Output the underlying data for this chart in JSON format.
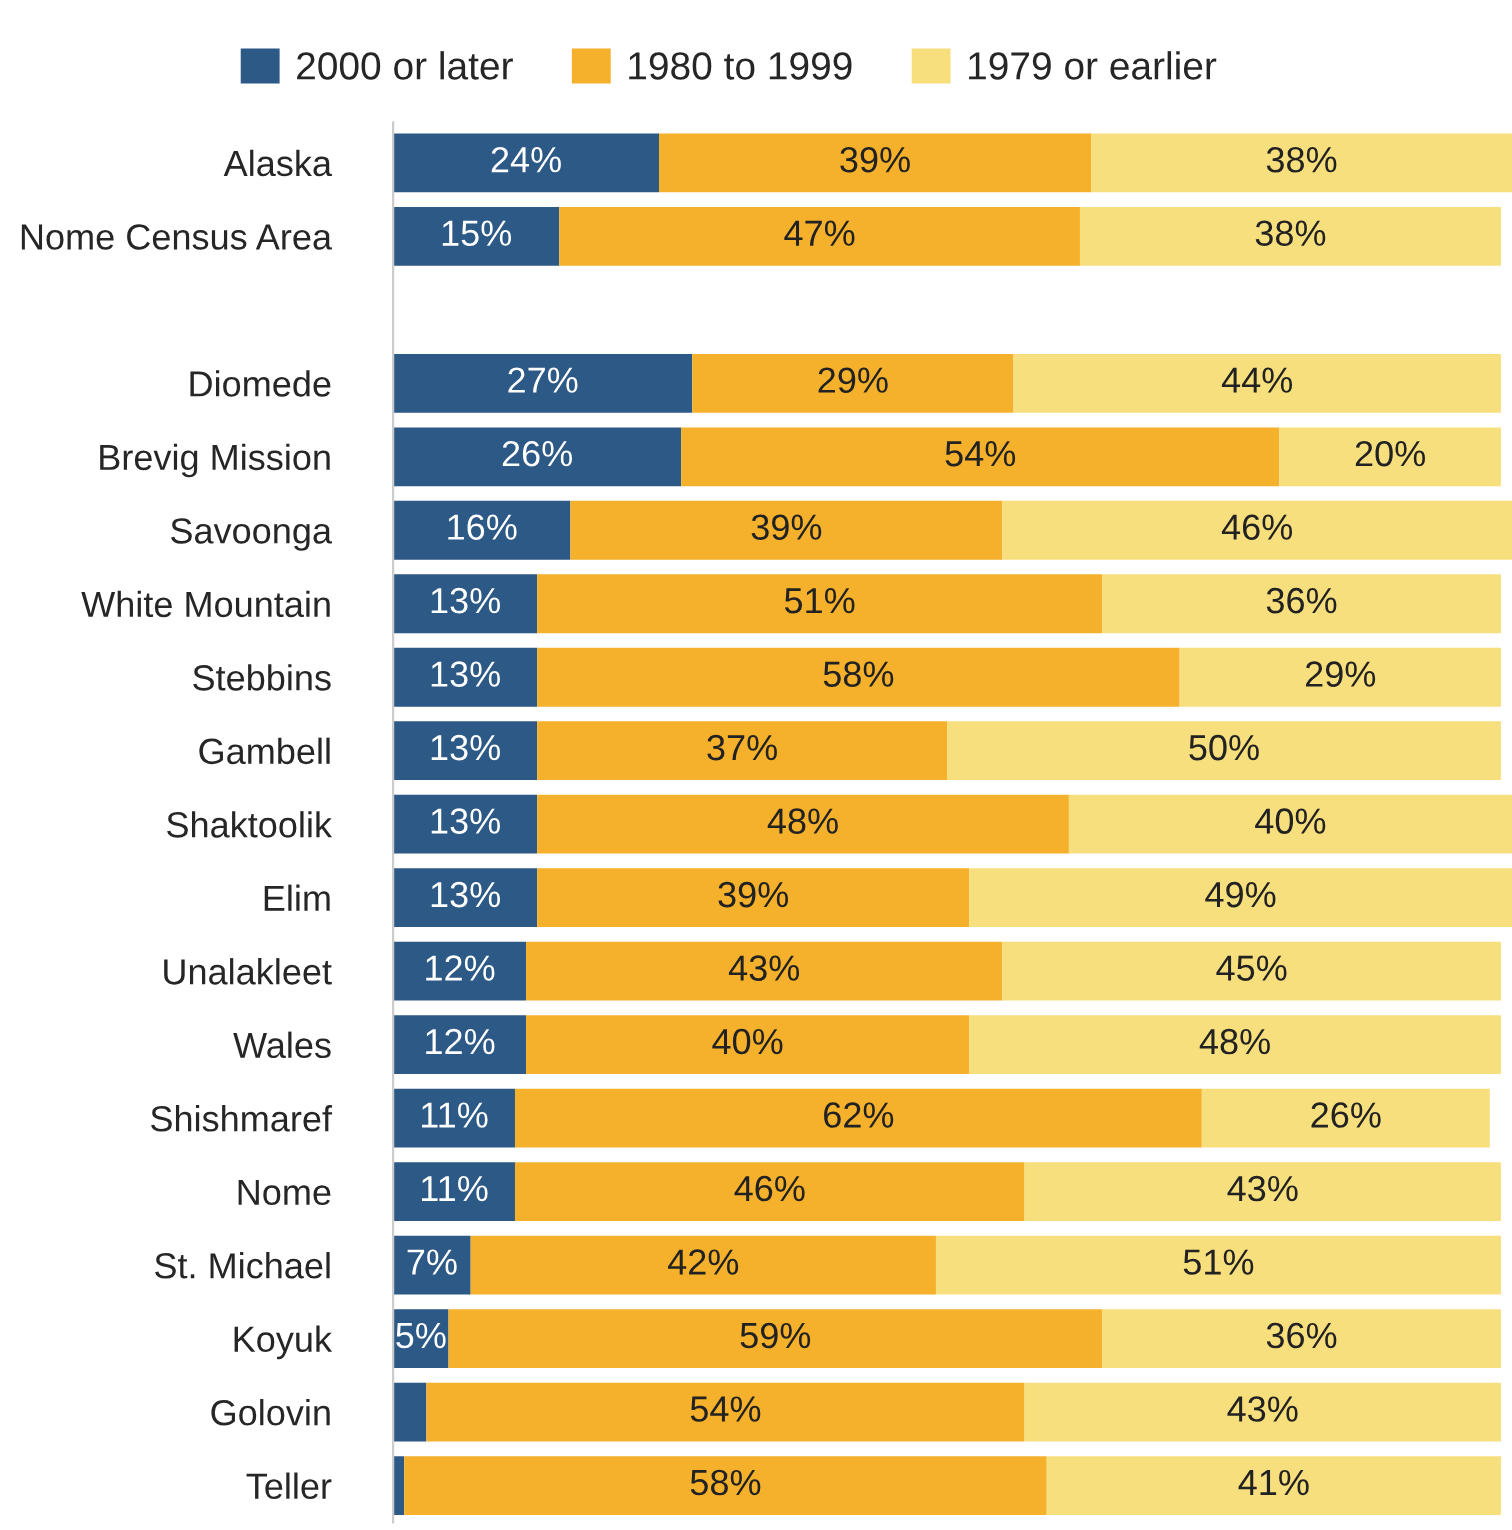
{
  "chart_data": {
    "type": "bar",
    "orientation": "horizontal",
    "stacked": true,
    "legend": "top",
    "categories": [
      "Alaska",
      "Nome Census Area",
      null,
      "Diomede",
      "Brevig Mission",
      "Savoonga",
      "White Mountain",
      "Stebbins",
      "Gambell",
      "Shaktoolik",
      "Elim",
      "Unalakleet",
      "Wales",
      "Shishmaref",
      "Nome",
      "St. Michael",
      "Koyuk",
      "Golovin",
      "Teller"
    ],
    "series": [
      {
        "name": "2000 or later",
        "color": "#2d5986",
        "values": [
          24,
          15,
          null,
          27,
          26,
          16,
          13,
          13,
          13,
          13,
          13,
          12,
          12,
          11,
          11,
          7,
          5,
          3,
          1
        ],
        "value_labels": [
          "24%",
          "15%",
          null,
          "27%",
          "26%",
          "16%",
          "13%",
          "13%",
          "13%",
          "13%",
          "13%",
          "12%",
          "12%",
          "11%",
          "11%",
          "7%",
          "5%",
          null,
          null
        ]
      },
      {
        "name": "1980 to 1999",
        "color": "#f5b12b",
        "values": [
          39,
          47,
          null,
          29,
          54,
          39,
          51,
          58,
          37,
          48,
          39,
          43,
          40,
          62,
          46,
          42,
          59,
          54,
          58
        ],
        "value_labels": [
          "39%",
          "47%",
          null,
          "29%",
          "54%",
          "39%",
          "51%",
          "58%",
          "37%",
          "48%",
          "39%",
          "43%",
          "40%",
          "62%",
          "46%",
          "42%",
          "59%",
          "54%",
          "58%"
        ]
      },
      {
        "name": "1979 or earlier",
        "color": "#f8df7d",
        "values": [
          38,
          38,
          null,
          44,
          20,
          46,
          36,
          29,
          50,
          40,
          49,
          45,
          48,
          26,
          43,
          51,
          36,
          43,
          41
        ],
        "value_labels": [
          "38%",
          "38%",
          null,
          "44%",
          "20%",
          "46%",
          "36%",
          "29%",
          "50%",
          "40%",
          "49%",
          "45%",
          "48%",
          "26%",
          "43%",
          "51%",
          "36%",
          "43%",
          "41%"
        ]
      }
    ]
  }
}
